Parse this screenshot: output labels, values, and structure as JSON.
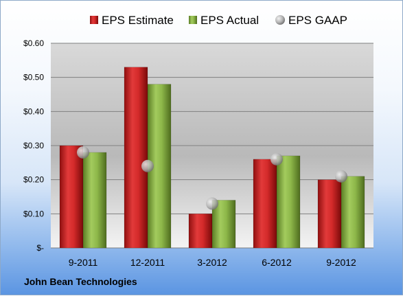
{
  "chart_data": {
    "type": "bar",
    "categories": [
      "9-2011",
      "12-2011",
      "3-2012",
      "6-2012",
      "9-2012"
    ],
    "series": [
      {
        "name": "EPS Estimate",
        "values": [
          0.3,
          0.53,
          0.1,
          0.26,
          0.2
        ],
        "color": "#d42a2a",
        "kind": "bar"
      },
      {
        "name": "EPS Actual",
        "values": [
          0.28,
          0.48,
          0.14,
          0.27,
          0.21
        ],
        "color": "#8eb84a",
        "kind": "bar"
      },
      {
        "name": "EPS GAAP",
        "values": [
          0.28,
          0.24,
          0.13,
          0.26,
          0.21
        ],
        "color": "#a9a9a9",
        "kind": "marker"
      }
    ],
    "yticks": [
      "$-",
      "$0.10",
      "$0.20",
      "$0.30",
      "$0.40",
      "$0.50",
      "$0.60"
    ],
    "ylim": [
      0,
      0.6
    ],
    "grid": true,
    "legend": "top"
  },
  "company": "John Bean Technologies"
}
